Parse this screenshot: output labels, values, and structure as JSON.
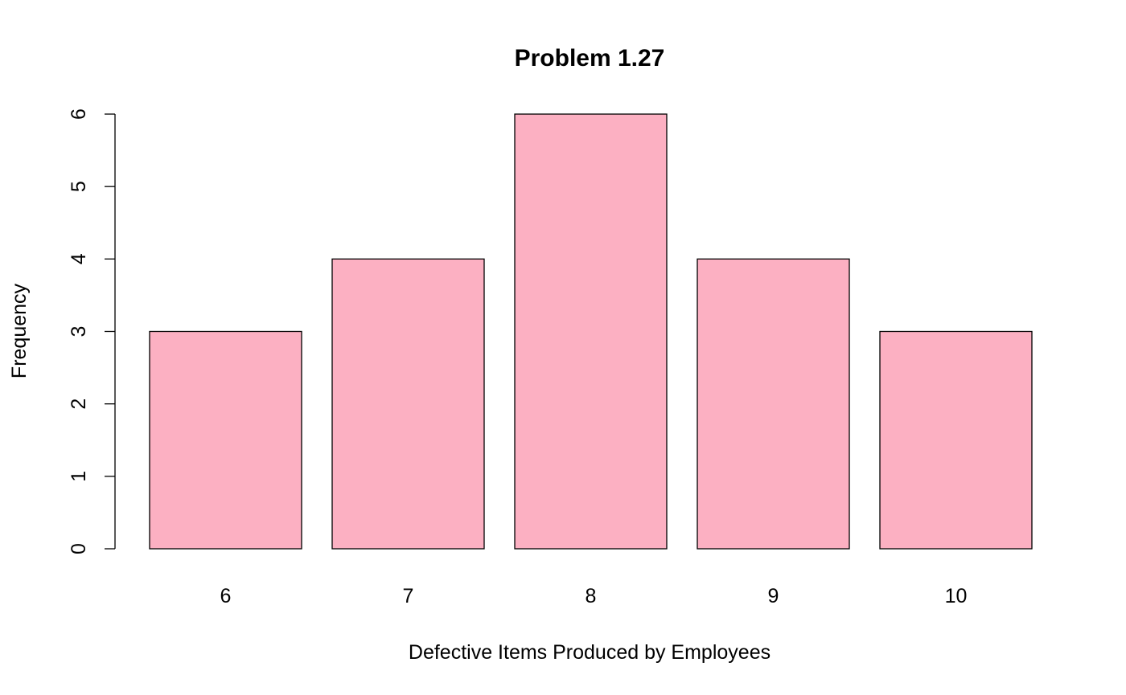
{
  "chart_data": {
    "type": "bar",
    "title": "Problem 1.27",
    "xlabel": "Defective Items Produced by Employees",
    "ylabel": "Frequency",
    "categories": [
      "6",
      "7",
      "8",
      "9",
      "10"
    ],
    "values": [
      3,
      4,
      6,
      4,
      3
    ],
    "ylim": [
      0,
      6
    ],
    "yticks": [
      "0",
      "1",
      "2",
      "3",
      "4",
      "5",
      "6"
    ],
    "bar_color": "#FCB0C2",
    "grid": false,
    "legend": "none"
  }
}
